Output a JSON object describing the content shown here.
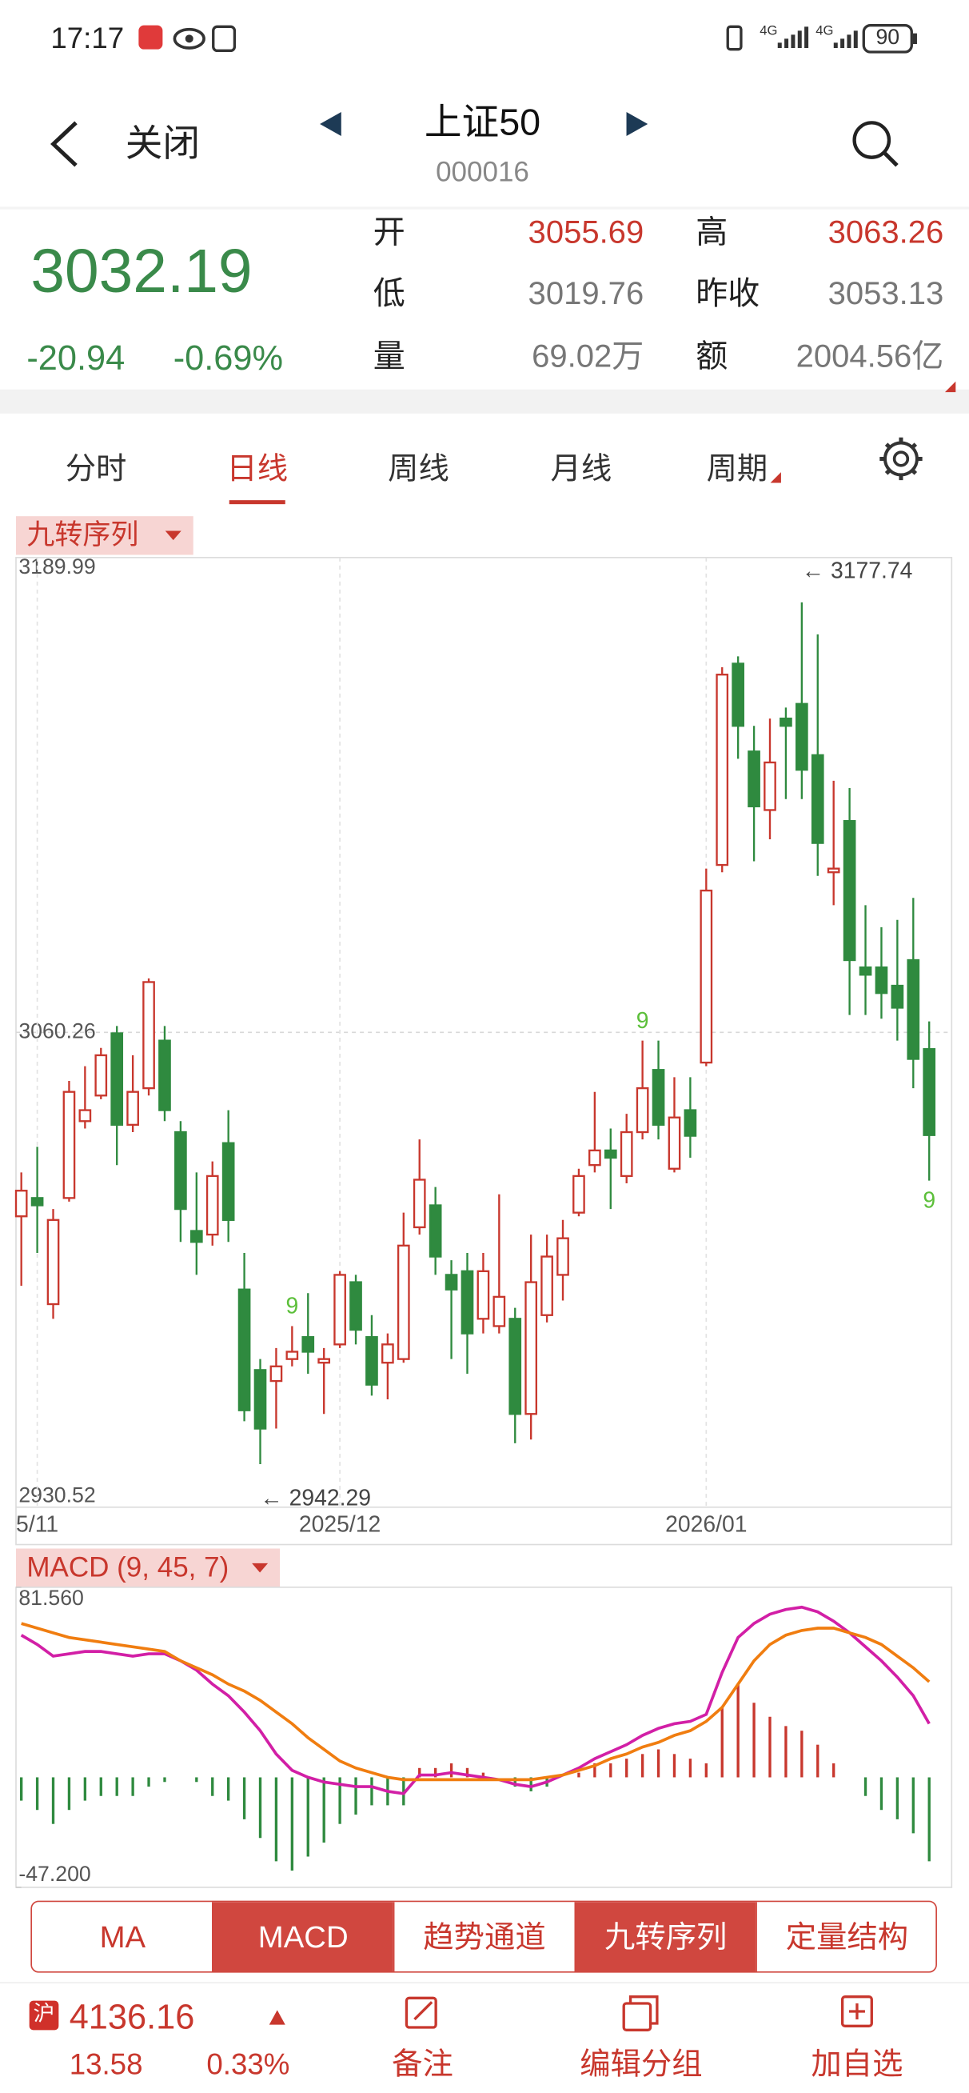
{
  "status_bar": {
    "time": "17:17",
    "network": "4G",
    "battery": "90"
  },
  "header": {
    "back": "关闭",
    "title": "上证50",
    "code": "000016"
  },
  "quote": {
    "price": "3032.19",
    "change": "-20.94",
    "change_pct": "-0.69%",
    "fields": [
      {
        "label": "开",
        "value": "3055.69"
      },
      {
        "label": "高",
        "value": "3063.26"
      },
      {
        "label": "低",
        "value": "3019.76"
      },
      {
        "label": "昨收",
        "value": "3053.13"
      },
      {
        "label": "量",
        "value": "69.02万"
      },
      {
        "label": "额",
        "value": "2004.56亿"
      }
    ]
  },
  "tabs": {
    "items": [
      "分时",
      "日线",
      "周线",
      "月线",
      "周期"
    ],
    "active": 1
  },
  "indicator_main": "九转序列",
  "chart_data": [
    {
      "type": "candlestick",
      "ylim": [
        2930.52,
        3189.99
      ],
      "yticks": [
        3189.99,
        3060.26,
        2930.52
      ],
      "xticks": [
        {
          "value": 1,
          "label": "5/11"
        },
        {
          "value": 20,
          "label": "2025/12"
        },
        {
          "value": 43,
          "label": "2026/01"
        }
      ],
      "up_color": "#c8372d",
      "down_color": "#2f8a3f",
      "candles": {
        "open": [
          3010,
          3015,
          2986,
          3015,
          3036,
          3043,
          3060,
          3035,
          3045,
          3058,
          3033,
          3006,
          3005,
          3030,
          2990,
          2968,
          2965,
          2971,
          2977,
          2970,
          2975,
          2992,
          2977,
          2970,
          2971,
          3007,
          3013,
          2994,
          2995,
          2982,
          2980,
          2982,
          2956,
          2983,
          2994,
          3011,
          3024,
          3028,
          3021,
          3033,
          3050,
          3023,
          3039,
          3052,
          3106,
          3161,
          3137,
          3121,
          3146,
          3150,
          3136,
          3104,
          3118,
          3078,
          3078,
          3073,
          3080,
          3055.69
        ],
        "high": [
          3022,
          3029,
          3012,
          3047,
          3051,
          3056,
          3062,
          3054,
          3075,
          3062,
          3036,
          3022,
          3025,
          3039,
          3000,
          2971,
          2974,
          2980,
          2989,
          2974,
          2995,
          2994,
          2983,
          2978,
          3011,
          3031,
          3018,
          2998,
          3000,
          3000,
          3016,
          2985,
          3005,
          3005,
          3009,
          3023,
          3044,
          3034,
          3038,
          3058,
          3058,
          3048,
          3048,
          3105,
          3160,
          3163,
          3144,
          3146,
          3149,
          3177.74,
          3169,
          3129,
          3127,
          3095,
          3089,
          3091,
          3097,
          3063.26
        ],
        "low": [
          2991,
          3000,
          2982,
          3014,
          3034,
          3042,
          3024,
          3033,
          3043,
          3036,
          3003,
          2994,
          3002,
          3003,
          2954,
          2942.29,
          2952,
          2969,
          2967,
          2956,
          2974,
          2975,
          2961,
          2960,
          2970,
          3005,
          2994,
          2971,
          2967,
          2978,
          2978,
          2948,
          2949,
          2981,
          2987,
          3010,
          3022,
          3012,
          3019,
          3031,
          3031,
          3022,
          3026,
          3051,
          3104,
          3135,
          3107,
          3113,
          3124,
          3124,
          3103,
          3095,
          3065,
          3065,
          3064,
          3058,
          3045,
          3019.76
        ],
        "close": [
          3017,
          3013,
          3009,
          3044,
          3039,
          3054,
          3035,
          3044,
          3074,
          3039,
          3012,
          3003,
          3021,
          3009,
          2957,
          2952,
          2969,
          2973,
          2973,
          2971,
          2994,
          2979,
          2964,
          2975,
          3002,
          3020,
          2999,
          2990,
          2978,
          2995,
          2988,
          2956,
          2992,
          2999,
          3004,
          3021,
          3028,
          3026,
          3033,
          3045,
          3035,
          3037,
          3032,
          3099,
          3158,
          3144,
          3122,
          3134,
          3144,
          3132,
          3112,
          3105,
          3080,
          3076,
          3071,
          3067,
          3053,
          3032.19
        ]
      },
      "annotations": [
        {
          "value": 3177.74,
          "label": "← 3177.74",
          "index": 50
        },
        {
          "value": 2942.29,
          "label": "← 2942.29",
          "index": 16
        }
      ],
      "markers": [
        {
          "index": 17,
          "label": "9"
        },
        {
          "index": 39,
          "label": "9"
        },
        {
          "index": 57,
          "label": "9"
        }
      ],
      "marker_color": "#5cbf3a"
    },
    {
      "type": "macd",
      "title": "MACD (9, 45, 7)",
      "ylim": [
        -47.2,
        81.56
      ],
      "yticks": [
        {
          "value": 81.56,
          "label": "81.560"
        },
        {
          "value": -47.2,
          "label": "-47.200"
        }
      ],
      "series": [
        {
          "color": "#d21fa6",
          "values": [
            61,
            57,
            52,
            53,
            54,
            54,
            53,
            52,
            53,
            53,
            50,
            46,
            40,
            35,
            28,
            20,
            10,
            3,
            0,
            -2,
            -3,
            -4,
            -4,
            -6,
            -7,
            1,
            1,
            2,
            1,
            0,
            -1,
            -3,
            -4,
            -2,
            1,
            4,
            8,
            11,
            14,
            18,
            21,
            23,
            24,
            27,
            45,
            60,
            66,
            70,
            72,
            73,
            71,
            67,
            62,
            56,
            50,
            43,
            35,
            23
          ]
        },
        {
          "color": "#f07d10",
          "values": [
            66,
            64,
            62,
            60,
            59,
            58,
            57,
            56,
            55,
            54,
            50,
            47,
            44,
            40,
            37,
            33,
            28,
            23,
            17,
            12,
            7,
            4,
            2,
            0,
            -1,
            -1,
            -1,
            -1,
            -1,
            -1,
            -1,
            -1,
            -1,
            0,
            1,
            3,
            5,
            8,
            10,
            13,
            15,
            18,
            20,
            24,
            30,
            40,
            50,
            57,
            61,
            63,
            64,
            64,
            62,
            60,
            57,
            52,
            47,
            41
          ]
        }
      ],
      "histogram": {
        "up_color": "#c8372d",
        "down_color": "#2f8a3f",
        "values": [
          -10,
          -14,
          -20,
          -14,
          -10,
          -8,
          -8,
          -8,
          -4,
          -2,
          0,
          -2,
          -8,
          -10,
          -18,
          -26,
          -36,
          -40,
          -34,
          -28,
          -20,
          -16,
          -12,
          -12,
          -12,
          4,
          4,
          6,
          4,
          2,
          0,
          -4,
          -6,
          -4,
          0,
          2,
          6,
          6,
          8,
          10,
          12,
          10,
          8,
          6,
          30,
          40,
          32,
          26,
          22,
          20,
          14,
          6,
          0,
          -8,
          -14,
          -18,
          -24,
          -36
        ]
      }
    }
  ],
  "indicator_buttons": {
    "items": [
      "MA",
      "MACD",
      "趋势通道",
      "九转序列",
      "定量结构"
    ],
    "active": [
      1,
      3
    ]
  },
  "footer": {
    "market": "沪",
    "index_value": "4136.16",
    "change": "13.58",
    "change_pct": "0.33%",
    "actions": [
      "备注",
      "编辑分组",
      "加自选"
    ]
  }
}
